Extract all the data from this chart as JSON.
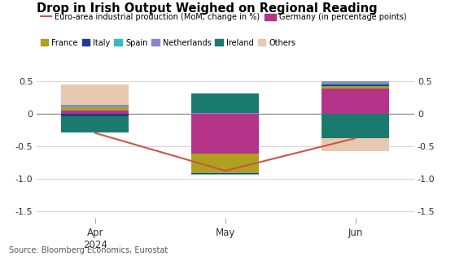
{
  "title": "Drop in Irish Output Weighed on Regional Reading",
  "source": "Source: Bloomberg Economics, Eurostat",
  "months": [
    "Apr\n2024",
    "May",
    "Jun"
  ],
  "x_positions": [
    0,
    1,
    2
  ],
  "line_values": [
    -0.3,
    -0.88,
    -0.38
  ],
  "stacked_data": {
    "Germany": [
      0.05,
      -0.62,
      0.38
    ],
    "France": [
      0.05,
      -0.3,
      0.04
    ],
    "Italy": [
      -0.04,
      -0.01,
      0.02
    ],
    "Spain": [
      0.01,
      -0.015,
      0.015
    ],
    "Netherlands": [
      0.02,
      0.01,
      0.04
    ],
    "Ireland": [
      -0.25,
      0.3,
      -0.38
    ],
    "Others": [
      0.32,
      0.0,
      -0.2
    ]
  },
  "colors": {
    "Germany": "#b5348a",
    "France": "#b0a020",
    "Italy": "#1e3d8f",
    "Spain": "#3ab8c5",
    "Netherlands": "#8888cc",
    "Ireland": "#1a7a6e",
    "Others": "#e8c8b0"
  },
  "line_color": "#cc5544",
  "ylim": [
    -1.6,
    0.72
  ],
  "yticks": [
    0.5,
    0.0,
    -0.5,
    -1.0,
    -1.5
  ],
  "bar_width": 0.52,
  "legend_line_label": "Euro-area industrial production (MoM, change in %)",
  "germany_label": "Germany (in percentage points)",
  "other_labels": [
    "France",
    "Italy",
    "Spain",
    "Netherlands",
    "Ireland",
    "Others"
  ],
  "other_keys": [
    "France",
    "Italy",
    "Spain",
    "Netherlands",
    "Ireland",
    "Others"
  ]
}
